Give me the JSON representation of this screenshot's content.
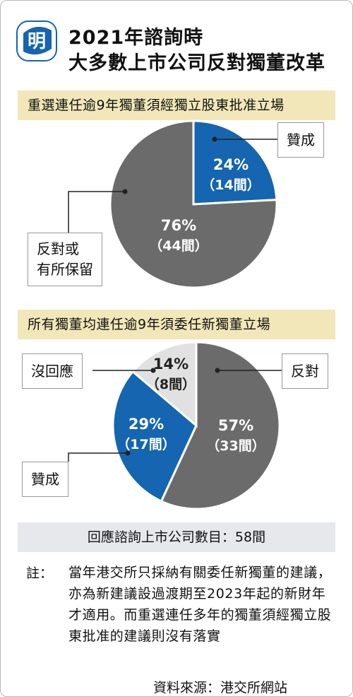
{
  "header": {
    "logo_char": "明",
    "title_line1": "2021年諮詢時",
    "title_line2": "大多數上市公司反對獨董改革"
  },
  "colors": {
    "support": "#1565b0",
    "oppose": "#6b6b6b",
    "no_response": "#e1e1e1",
    "subhead_bg": "#f1e7b8",
    "footer_bg": "#e6e8ec"
  },
  "chart_data": [
    {
      "type": "pie",
      "title": "重選連任逾9年獨董須經獨立股東批准立場",
      "slices": [
        {
          "label": "贊成",
          "percent_label": "24%",
          "count_label": "（14間）",
          "value": 14,
          "percent": 24
        },
        {
          "label": "反對或\n有所保留",
          "percent_label": "76%",
          "count_label": "（44間）",
          "value": 44,
          "percent": 76
        }
      ]
    },
    {
      "type": "pie",
      "title": "所有獨董均連任逾9年須委任新獨董立場",
      "slices": [
        {
          "label": "反對",
          "percent_label": "57%",
          "count_label": "（33間）",
          "value": 33,
          "percent": 57
        },
        {
          "label": "贊成",
          "percent_label": "29%",
          "count_label": "（17間）",
          "value": 17,
          "percent": 29
        },
        {
          "label": "沒回應",
          "percent_label": "14%",
          "count_label": "（8間）",
          "value": 8,
          "percent": 14
        }
      ]
    }
  ],
  "chart1_labels": {
    "support": "贊成",
    "oppose_line1": "反對或",
    "oppose_line2": "有所保留"
  },
  "chart2_labels": {
    "oppose": "反對",
    "support": "贊成",
    "no_response": "沒回應"
  },
  "footer": {
    "respondents": "回應諮詢上市公司數目：58間",
    "note_prefix": "註：",
    "note": "當年港交所只採納有關委任新獨董的建議，亦為新建議設過渡期至2023年起的新財年才適用。而重選連任多年的獨董須經獨立股東批准的建議則沒有落實",
    "source": "資料來源：港交所網站"
  }
}
